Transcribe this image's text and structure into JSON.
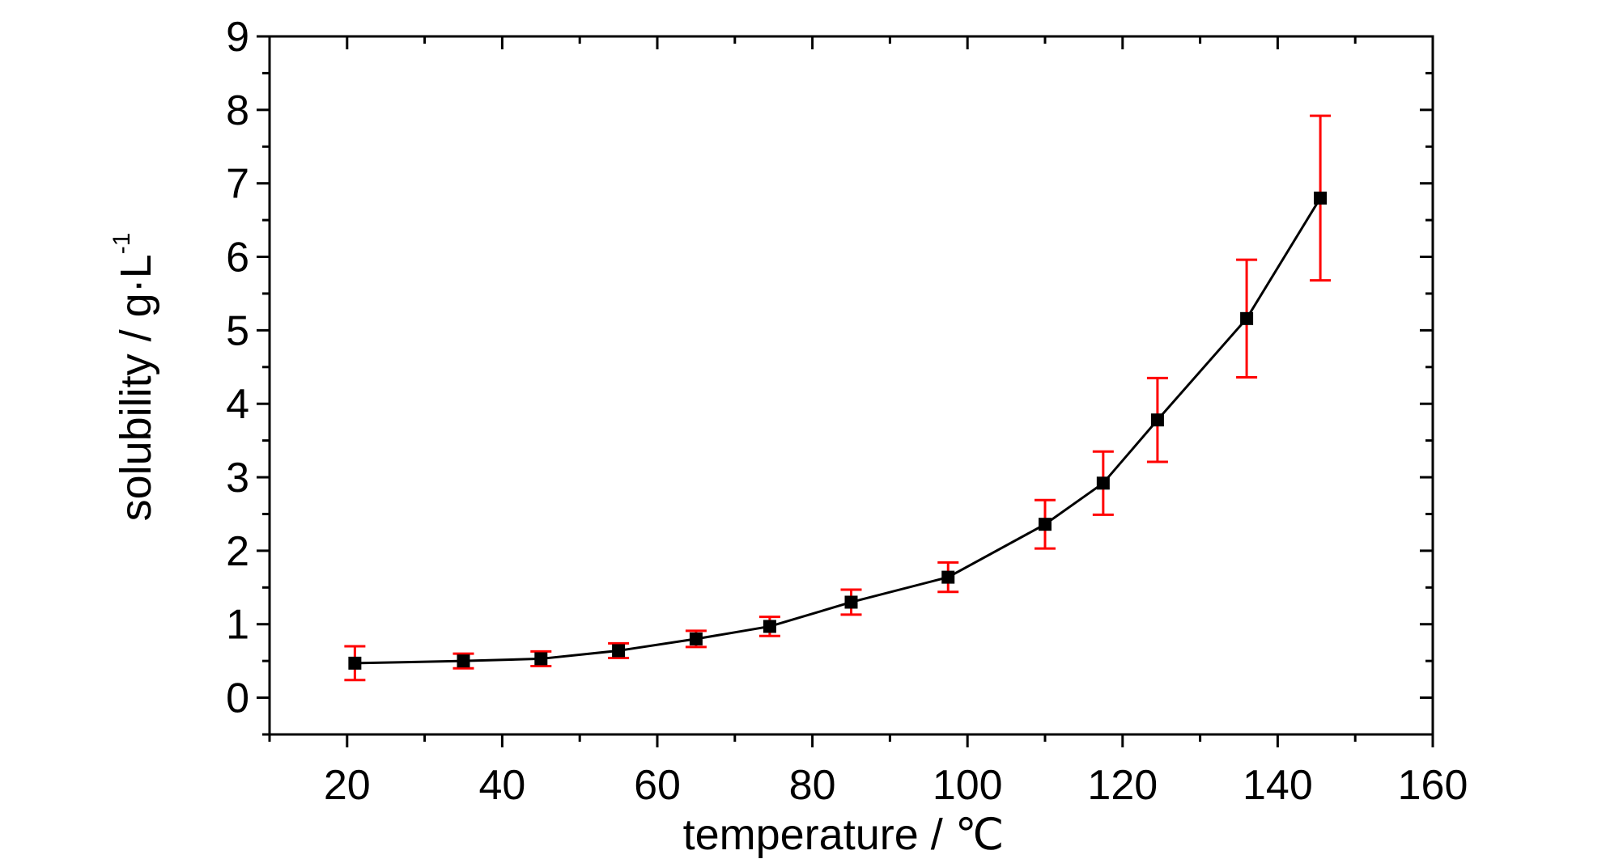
{
  "chart_data": {
    "type": "line",
    "xlabel": "temperature / ℃",
    "ylabel": "solubility / g·L",
    "ylabel_superscript": "-1",
    "xlim": [
      10,
      160
    ],
    "ylim": [
      -0.5,
      9
    ],
    "x_ticks": [
      20,
      40,
      60,
      80,
      100,
      120,
      140,
      160
    ],
    "y_ticks": [
      0,
      1,
      2,
      3,
      4,
      5,
      6,
      7,
      8,
      9
    ],
    "grid": false,
    "line_color": "#000000",
    "marker_color": "#000000",
    "marker": "square",
    "error_bar_color": "#ff0000",
    "series": [
      {
        "x": [
          21,
          35,
          45,
          55,
          65,
          74.5,
          85,
          97.5,
          110,
          117.5,
          124.5,
          136,
          145.5
        ],
        "y": [
          0.47,
          0.5,
          0.53,
          0.64,
          0.8,
          0.97,
          1.3,
          1.64,
          2.36,
          2.92,
          3.78,
          5.16,
          6.8
        ],
        "error": [
          0.23,
          0.1,
          0.1,
          0.1,
          0.11,
          0.13,
          0.17,
          0.2,
          0.33,
          0.43,
          0.57,
          0.8,
          1.12
        ]
      }
    ]
  }
}
